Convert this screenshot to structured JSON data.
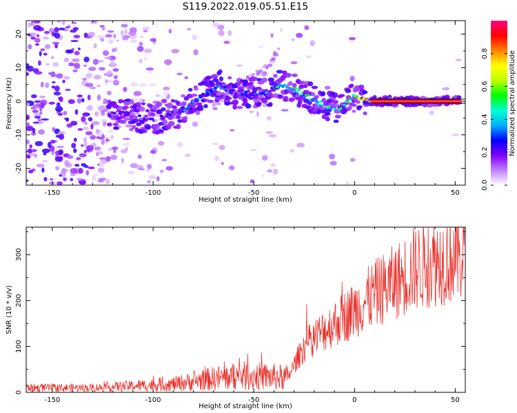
{
  "figure": {
    "title": "S119.2022.019.05.51.E15"
  },
  "chart_data": [
    {
      "type": "heatmap",
      "xlabel": "Height of straight line (km)",
      "ylabel": "Frequency (Hz)",
      "xlim": [
        -163,
        55
      ],
      "ylim": [
        -25,
        24
      ],
      "x_ticks": [
        -150,
        -100,
        -50,
        0,
        50
      ],
      "y_ticks": [
        -20,
        -10,
        0,
        10,
        20
      ],
      "colorbar": {
        "label": "Normalized spectral amplitude",
        "range": [
          0,
          1
        ],
        "ticks": [
          0.0,
          0.2,
          0.4,
          0.6,
          0.8
        ],
        "colormap": [
          "#ffffff",
          "#c080ff",
          "#8000ff",
          "#0000ff",
          "#00b0ff",
          "#00ffd0",
          "#00ff00",
          "#c0ff00",
          "#ffff00",
          "#ff8000",
          "#ff0000",
          "#ff0080"
        ]
      },
      "ridge": [
        [
          -122,
          -4
        ],
        [
          -110,
          -4
        ],
        [
          -100,
          -5.5
        ],
        [
          -92,
          -4
        ],
        [
          -85,
          -2.5
        ],
        [
          -78,
          0.5
        ],
        [
          -72,
          3
        ],
        [
          -66,
          4.5
        ],
        [
          -60,
          2.5
        ],
        [
          -52,
          2.5
        ],
        [
          -45,
          2.5
        ],
        [
          -38,
          4.5
        ],
        [
          -32,
          4
        ],
        [
          -28,
          3
        ],
        [
          -24,
          1.5
        ],
        [
          -20,
          0
        ],
        [
          -14,
          -1.5
        ],
        [
          -8,
          -2.5
        ],
        [
          -4,
          -0.5
        ],
        [
          0,
          1.5
        ],
        [
          4,
          0.5
        ],
        [
          8,
          0
        ],
        [
          15,
          0
        ],
        [
          30,
          0
        ],
        [
          40,
          0
        ],
        [
          52,
          0
        ]
      ],
      "secondary_ridge": [
        [
          -70,
          -1
        ],
        [
          -55,
          5
        ],
        [
          -45,
          9
        ],
        [
          -37,
          16
        ]
      ]
    },
    {
      "type": "line",
      "xlabel": "Height of straight line (km)",
      "ylabel": "SNR (10 * v/v)",
      "xlim": [
        -163,
        55
      ],
      "ylim": [
        0,
        360
      ],
      "x_ticks": [
        -150,
        -100,
        -50,
        0,
        50
      ],
      "y_ticks": [
        0,
        100,
        200,
        300
      ],
      "color": "#e8302a",
      "trend": [
        [
          -163,
          10
        ],
        [
          -130,
          10
        ],
        [
          -110,
          14
        ],
        [
          -90,
          18
        ],
        [
          -80,
          24
        ],
        [
          -70,
          30
        ],
        [
          -55,
          36
        ],
        [
          -45,
          34
        ],
        [
          -33,
          32
        ],
        [
          -30,
          60
        ],
        [
          -25,
          100
        ],
        [
          -20,
          120
        ],
        [
          -10,
          150
        ],
        [
          0,
          180
        ],
        [
          10,
          215
        ],
        [
          20,
          240
        ],
        [
          30,
          270
        ],
        [
          40,
          285
        ],
        [
          50,
          295
        ],
        [
          55,
          300
        ]
      ]
    }
  ]
}
